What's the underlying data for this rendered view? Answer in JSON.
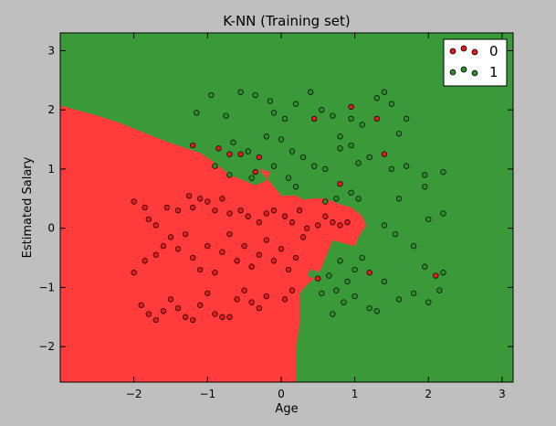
{
  "chart_data": {
    "type": "scatter",
    "title": "K-NN (Training set)",
    "xlabel": "Age",
    "ylabel": "Estimated Salary",
    "xlim": [
      -3.0,
      3.15
    ],
    "ylim": [
      -2.6,
      3.3
    ],
    "xticks": [
      -2,
      -1,
      0,
      1,
      2,
      3
    ],
    "yticks": [
      -2,
      -1,
      0,
      1,
      2,
      3
    ],
    "xtick_labels": [
      "−2",
      "−1",
      "0",
      "1",
      "2",
      "3"
    ],
    "ytick_labels": [
      "−2",
      "−1",
      "0",
      "1",
      "2",
      "3"
    ],
    "grid": false,
    "legend_position": "top-right",
    "colors": {
      "0": "#ff3b3b",
      "1": "#3a9a3a",
      "point0": "#e41a1c",
      "point1": "#2e8b2e",
      "background": "#bfbfbf"
    },
    "regions": [
      {
        "class": "0",
        "polygon": [
          [
            -3.0,
            2.07
          ],
          [
            -2.8,
            2.0
          ],
          [
            -2.5,
            1.9
          ],
          [
            -2.2,
            1.78
          ],
          [
            -1.9,
            1.63
          ],
          [
            -1.6,
            1.48
          ],
          [
            -1.3,
            1.35
          ],
          [
            -1.1,
            1.27
          ],
          [
            -0.9,
            1.1
          ],
          [
            -0.7,
            0.9
          ],
          [
            -0.5,
            0.8
          ],
          [
            -0.35,
            0.72
          ],
          [
            -0.2,
            0.8
          ],
          [
            -0.15,
            0.95
          ],
          [
            -0.3,
            1.0
          ],
          [
            -0.1,
            0.7
          ],
          [
            0.0,
            0.55
          ],
          [
            0.2,
            0.55
          ],
          [
            0.3,
            0.48
          ],
          [
            0.45,
            0.5
          ],
          [
            0.6,
            0.5
          ],
          [
            0.7,
            0.45
          ],
          [
            0.8,
            0.4
          ],
          [
            0.95,
            0.35
          ],
          [
            1.1,
            0.2
          ],
          [
            1.15,
            0.05
          ],
          [
            1.05,
            -0.15
          ],
          [
            1.0,
            -0.3
          ],
          [
            0.85,
            -0.25
          ],
          [
            0.7,
            -0.2
          ],
          [
            0.6,
            -0.5
          ],
          [
            0.5,
            -0.8
          ],
          [
            0.35,
            -0.95
          ],
          [
            0.25,
            -1.1
          ],
          [
            0.25,
            -1.6
          ],
          [
            0.2,
            -2.0
          ],
          [
            0.2,
            -2.6
          ],
          [
            -3.0,
            -2.6
          ]
        ]
      },
      {
        "class": "1",
        "polygon": [
          [
            0.36,
            -0.8
          ],
          [
            0.55,
            -0.9
          ],
          [
            0.55,
            -0.75
          ],
          [
            0.4,
            -0.7
          ]
        ]
      }
    ],
    "series": [
      {
        "name": "0",
        "points": [
          [
            -2.0,
            0.45
          ],
          [
            -1.85,
            0.35
          ],
          [
            -1.8,
            0.15
          ],
          [
            -1.7,
            0.05
          ],
          [
            -1.55,
            0.35
          ],
          [
            -1.4,
            0.3
          ],
          [
            -1.25,
            0.55
          ],
          [
            -1.2,
            0.35
          ],
          [
            -1.1,
            0.5
          ],
          [
            -1.0,
            0.45
          ],
          [
            -0.9,
            0.3
          ],
          [
            -0.8,
            0.5
          ],
          [
            -0.7,
            0.25
          ],
          [
            -0.55,
            0.3
          ],
          [
            -0.45,
            0.2
          ],
          [
            -0.3,
            0.1
          ],
          [
            -0.2,
            0.25
          ],
          [
            -0.1,
            0.3
          ],
          [
            0.05,
            0.2
          ],
          [
            0.15,
            0.1
          ],
          [
            0.25,
            0.3
          ],
          [
            0.35,
            0.0
          ],
          [
            0.5,
            0.05
          ],
          [
            0.6,
            0.2
          ],
          [
            0.7,
            0.1
          ],
          [
            0.8,
            0.05
          ],
          [
            0.9,
            0.1
          ],
          [
            -2.0,
            -0.75
          ],
          [
            -1.85,
            -0.55
          ],
          [
            -1.7,
            -0.45
          ],
          [
            -1.6,
            -0.3
          ],
          [
            -1.5,
            -0.15
          ],
          [
            -1.4,
            -0.35
          ],
          [
            -1.3,
            -0.1
          ],
          [
            -1.2,
            -0.5
          ],
          [
            -1.1,
            -0.7
          ],
          [
            -1.0,
            -0.3
          ],
          [
            -0.9,
            -0.75
          ],
          [
            -0.8,
            -0.4
          ],
          [
            -0.7,
            -0.1
          ],
          [
            -0.6,
            -0.55
          ],
          [
            -0.5,
            -0.3
          ],
          [
            -0.4,
            -0.65
          ],
          [
            -0.3,
            -0.45
          ],
          [
            -0.2,
            -0.2
          ],
          [
            -0.1,
            -0.55
          ],
          [
            0.0,
            -0.35
          ],
          [
            0.1,
            -0.7
          ],
          [
            0.2,
            -0.5
          ],
          [
            0.3,
            -0.15
          ],
          [
            -1.9,
            -1.3
          ],
          [
            -1.8,
            -1.45
          ],
          [
            -1.7,
            -1.55
          ],
          [
            -1.6,
            -1.4
          ],
          [
            -1.5,
            -1.2
          ],
          [
            -1.4,
            -1.35
          ],
          [
            -1.3,
            -1.5
          ],
          [
            -1.2,
            -1.55
          ],
          [
            -1.1,
            -1.3
          ],
          [
            -1.0,
            -1.1
          ],
          [
            -0.9,
            -1.45
          ],
          [
            -0.8,
            -1.5
          ],
          [
            -0.7,
            -1.5
          ],
          [
            -0.6,
            -1.2
          ],
          [
            -0.5,
            -1.05
          ],
          [
            -0.4,
            -1.25
          ],
          [
            -0.3,
            -1.35
          ],
          [
            -0.2,
            -1.15
          ],
          [
            0.05,
            -1.2
          ],
          [
            0.15,
            -1.05
          ],
          [
            -1.2,
            1.4
          ],
          [
            -0.85,
            1.35
          ],
          [
            -0.7,
            1.25
          ],
          [
            -0.55,
            1.25
          ],
          [
            -0.3,
            1.2
          ],
          [
            -0.35,
            0.95
          ],
          [
            0.45,
            1.85
          ],
          [
            0.95,
            2.05
          ],
          [
            1.3,
            1.85
          ],
          [
            1.4,
            1.25
          ],
          [
            0.8,
            0.75
          ],
          [
            1.2,
            -0.75
          ],
          [
            2.1,
            -0.8
          ],
          [
            0.5,
            -0.85
          ]
        ]
      },
      {
        "name": "1",
        "points": [
          [
            -1.15,
            1.95
          ],
          [
            -0.95,
            2.25
          ],
          [
            -0.75,
            1.9
          ],
          [
            -0.55,
            2.3
          ],
          [
            -0.35,
            2.25
          ],
          [
            -0.15,
            2.15
          ],
          [
            -0.1,
            1.95
          ],
          [
            0.05,
            1.85
          ],
          [
            0.2,
            2.1
          ],
          [
            0.4,
            2.3
          ],
          [
            0.55,
            2.0
          ],
          [
            0.7,
            1.9
          ],
          [
            0.8,
            1.55
          ],
          [
            0.95,
            1.85
          ],
          [
            1.1,
            1.75
          ],
          [
            1.3,
            2.2
          ],
          [
            1.4,
            2.3
          ],
          [
            1.5,
            2.1
          ],
          [
            1.6,
            1.6
          ],
          [
            1.7,
            1.85
          ],
          [
            -0.65,
            1.45
          ],
          [
            -0.45,
            1.3
          ],
          [
            -0.2,
            1.55
          ],
          [
            0.0,
            1.5
          ],
          [
            0.15,
            1.3
          ],
          [
            0.3,
            1.2
          ],
          [
            0.45,
            1.05
          ],
          [
            0.6,
            1.0
          ],
          [
            0.8,
            1.35
          ],
          [
            0.95,
            1.4
          ],
          [
            1.05,
            1.1
          ],
          [
            1.2,
            1.2
          ],
          [
            1.5,
            1.0
          ],
          [
            1.7,
            1.05
          ],
          [
            1.95,
            0.9
          ],
          [
            2.2,
            0.95
          ],
          [
            -0.9,
            1.05
          ],
          [
            -0.7,
            0.9
          ],
          [
            -0.4,
            0.85
          ],
          [
            -0.1,
            1.05
          ],
          [
            0.1,
            0.85
          ],
          [
            0.2,
            0.7
          ],
          [
            0.6,
            0.45
          ],
          [
            0.75,
            0.5
          ],
          [
            0.95,
            0.6
          ],
          [
            1.05,
            0.5
          ],
          [
            1.6,
            0.5
          ],
          [
            1.95,
            0.7
          ],
          [
            2.0,
            0.15
          ],
          [
            2.2,
            0.25
          ],
          [
            1.4,
            0.05
          ],
          [
            1.55,
            -0.1
          ],
          [
            1.8,
            -0.3
          ],
          [
            1.1,
            -0.5
          ],
          [
            1.0,
            -0.7
          ],
          [
            0.8,
            -0.55
          ],
          [
            0.65,
            -0.8
          ],
          [
            0.75,
            -1.05
          ],
          [
            0.85,
            -1.25
          ],
          [
            1.0,
            -1.15
          ],
          [
            1.2,
            -1.35
          ],
          [
            1.4,
            -0.9
          ],
          [
            1.6,
            -1.2
          ],
          [
            1.8,
            -1.1
          ],
          [
            2.0,
            -1.25
          ],
          [
            2.15,
            -1.05
          ],
          [
            1.95,
            -0.65
          ],
          [
            2.2,
            -0.75
          ],
          [
            1.3,
            -1.4
          ],
          [
            0.7,
            -1.45
          ],
          [
            0.55,
            -1.1
          ],
          [
            0.9,
            -0.9
          ]
        ]
      }
    ],
    "legend": [
      {
        "label": "0",
        "series": "0"
      },
      {
        "label": "1",
        "series": "1"
      }
    ]
  }
}
